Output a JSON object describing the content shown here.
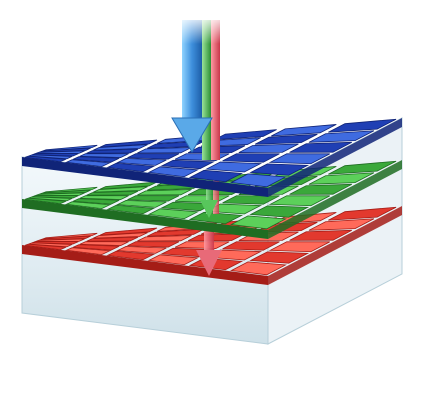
{
  "diagram": {
    "layers": [
      {
        "name": "blue",
        "color": "#1f3fb4",
        "light": "#3f6be0",
        "dark": "#102478"
      },
      {
        "name": "green",
        "color": "#3aa83a",
        "light": "#5cd05a",
        "dark": "#1f6d22"
      },
      {
        "name": "red",
        "color": "#e2392e",
        "light": "#ff6a5a",
        "dark": "#a51d17"
      }
    ],
    "light_beams": [
      {
        "name": "blue-beam",
        "color": "#3e8fdc"
      },
      {
        "name": "green-beam",
        "color": "#42b84a"
      },
      {
        "name": "red-beam",
        "color": "#e05560"
      }
    ],
    "glass_color": "#dbe9f0"
  }
}
